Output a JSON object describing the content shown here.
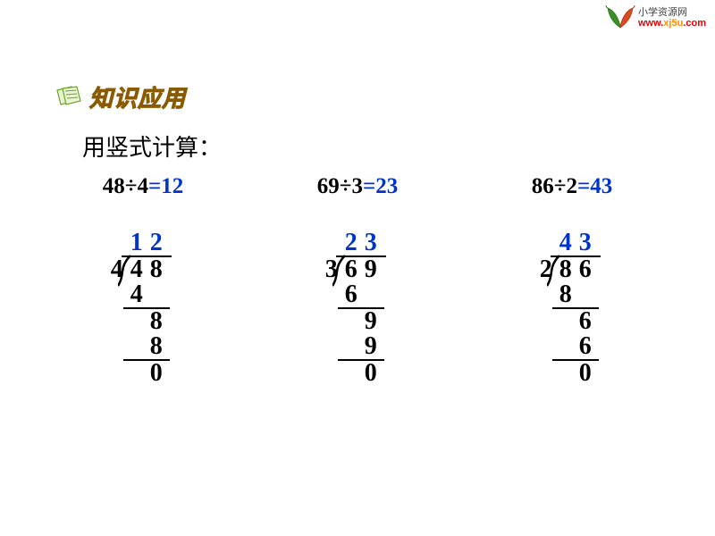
{
  "logo": {
    "cn_text": "小学资源网",
    "url_prefix": "www.",
    "url_mid": "xj5u",
    "url_suffix": ".com",
    "leaf_colors": [
      "#3a8f2a",
      "#d94a1f"
    ]
  },
  "section": {
    "title": "知识应用",
    "instruction": "用竖式计算：",
    "title_color": "#f5a800",
    "title_stroke": "#8a5a00",
    "paper_fill": "#e8f5d0",
    "paper_stroke": "#6aa32e"
  },
  "layout": {
    "background": "#ffffff",
    "text_color": "#000000",
    "answer_color": "#0033cc",
    "line_color": "#000000",
    "font_size_equation": 25,
    "font_size_longdiv": 28,
    "digit_width": 22
  },
  "problems": [
    {
      "lhs": "48÷4",
      "answer": "=12",
      "divisor": "4",
      "dividend_digits": [
        "4",
        "8"
      ],
      "quotient_digits": [
        "1",
        "2"
      ],
      "work_rows": [
        {
          "indent": 1,
          "digits": [
            "4"
          ],
          "line_after": true,
          "line_indent": 1,
          "line_cols": 2
        },
        {
          "indent": 2,
          "digits": [
            "8"
          ],
          "line_after": false
        },
        {
          "indent": 2,
          "digits": [
            "8"
          ],
          "line_after": true,
          "line_indent": 1,
          "line_cols": 2
        },
        {
          "indent": 2,
          "digits": [
            "0"
          ],
          "line_after": false
        }
      ]
    },
    {
      "lhs": "69÷3",
      "answer": "=23",
      "divisor": "3",
      "dividend_digits": [
        "6",
        "9"
      ],
      "quotient_digits": [
        "2",
        "3"
      ],
      "work_rows": [
        {
          "indent": 1,
          "digits": [
            "6"
          ],
          "line_after": true,
          "line_indent": 1,
          "line_cols": 2
        },
        {
          "indent": 2,
          "digits": [
            "9"
          ],
          "line_after": false
        },
        {
          "indent": 2,
          "digits": [
            "9"
          ],
          "line_after": true,
          "line_indent": 1,
          "line_cols": 2
        },
        {
          "indent": 2,
          "digits": [
            "0"
          ],
          "line_after": false
        }
      ]
    },
    {
      "lhs": "86÷2",
      "answer": "=43",
      "divisor": "2",
      "dividend_digits": [
        "8",
        "6"
      ],
      "quotient_digits": [
        "4",
        "3"
      ],
      "work_rows": [
        {
          "indent": 1,
          "digits": [
            "8"
          ],
          "line_after": true,
          "line_indent": 1,
          "line_cols": 2
        },
        {
          "indent": 2,
          "digits": [
            "6"
          ],
          "line_after": false
        },
        {
          "indent": 2,
          "digits": [
            "6"
          ],
          "line_after": true,
          "line_indent": 1,
          "line_cols": 2
        },
        {
          "indent": 2,
          "digits": [
            "0"
          ],
          "line_after": false
        }
      ]
    }
  ]
}
